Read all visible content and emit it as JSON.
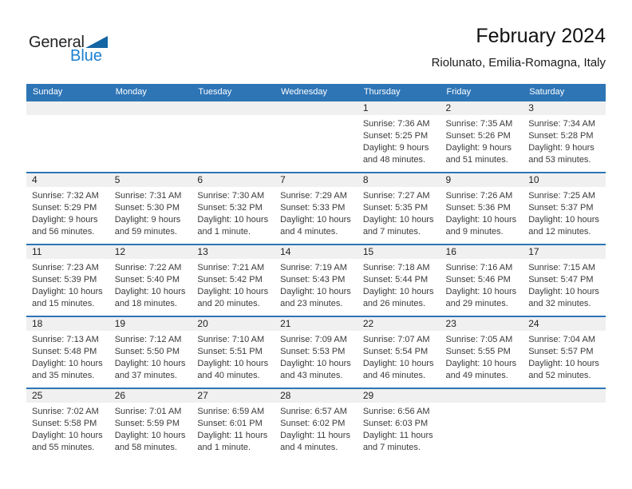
{
  "logo": {
    "part1": "General",
    "part2": "Blue"
  },
  "header": {
    "title": "February 2024",
    "subtitle": "Riolunato, Emilia-Romagna, Italy"
  },
  "colors": {
    "header_blue": "#2e75b6",
    "row_line_blue": "#2e75b6",
    "band_gray": "#f0f0f0",
    "brand_blue": "#1b7fd0",
    "triangle_blue": "#1465a4"
  },
  "calendar": {
    "weekdays": [
      "Sunday",
      "Monday",
      "Tuesday",
      "Wednesday",
      "Thursday",
      "Friday",
      "Saturday"
    ],
    "weeks": [
      {
        "days": [
          null,
          null,
          null,
          null,
          {
            "day": "1",
            "sunrise": "Sunrise: 7:36 AM",
            "sunset": "Sunset: 5:25 PM",
            "daylight": "Daylight: 9 hours and 48 minutes."
          },
          {
            "day": "2",
            "sunrise": "Sunrise: 7:35 AM",
            "sunset": "Sunset: 5:26 PM",
            "daylight": "Daylight: 9 hours and 51 minutes."
          },
          {
            "day": "3",
            "sunrise": "Sunrise: 7:34 AM",
            "sunset": "Sunset: 5:28 PM",
            "daylight": "Daylight: 9 hours and 53 minutes."
          }
        ]
      },
      {
        "days": [
          {
            "day": "4",
            "sunrise": "Sunrise: 7:32 AM",
            "sunset": "Sunset: 5:29 PM",
            "daylight": "Daylight: 9 hours and 56 minutes."
          },
          {
            "day": "5",
            "sunrise": "Sunrise: 7:31 AM",
            "sunset": "Sunset: 5:30 PM",
            "daylight": "Daylight: 9 hours and 59 minutes."
          },
          {
            "day": "6",
            "sunrise": "Sunrise: 7:30 AM",
            "sunset": "Sunset: 5:32 PM",
            "daylight": "Daylight: 10 hours and 1 minute."
          },
          {
            "day": "7",
            "sunrise": "Sunrise: 7:29 AM",
            "sunset": "Sunset: 5:33 PM",
            "daylight": "Daylight: 10 hours and 4 minutes."
          },
          {
            "day": "8",
            "sunrise": "Sunrise: 7:27 AM",
            "sunset": "Sunset: 5:35 PM",
            "daylight": "Daylight: 10 hours and 7 minutes."
          },
          {
            "day": "9",
            "sunrise": "Sunrise: 7:26 AM",
            "sunset": "Sunset: 5:36 PM",
            "daylight": "Daylight: 10 hours and 9 minutes."
          },
          {
            "day": "10",
            "sunrise": "Sunrise: 7:25 AM",
            "sunset": "Sunset: 5:37 PM",
            "daylight": "Daylight: 10 hours and 12 minutes."
          }
        ]
      },
      {
        "days": [
          {
            "day": "11",
            "sunrise": "Sunrise: 7:23 AM",
            "sunset": "Sunset: 5:39 PM",
            "daylight": "Daylight: 10 hours and 15 minutes."
          },
          {
            "day": "12",
            "sunrise": "Sunrise: 7:22 AM",
            "sunset": "Sunset: 5:40 PM",
            "daylight": "Daylight: 10 hours and 18 minutes."
          },
          {
            "day": "13",
            "sunrise": "Sunrise: 7:21 AM",
            "sunset": "Sunset: 5:42 PM",
            "daylight": "Daylight: 10 hours and 20 minutes."
          },
          {
            "day": "14",
            "sunrise": "Sunrise: 7:19 AM",
            "sunset": "Sunset: 5:43 PM",
            "daylight": "Daylight: 10 hours and 23 minutes."
          },
          {
            "day": "15",
            "sunrise": "Sunrise: 7:18 AM",
            "sunset": "Sunset: 5:44 PM",
            "daylight": "Daylight: 10 hours and 26 minutes."
          },
          {
            "day": "16",
            "sunrise": "Sunrise: 7:16 AM",
            "sunset": "Sunset: 5:46 PM",
            "daylight": "Daylight: 10 hours and 29 minutes."
          },
          {
            "day": "17",
            "sunrise": "Sunrise: 7:15 AM",
            "sunset": "Sunset: 5:47 PM",
            "daylight": "Daylight: 10 hours and 32 minutes."
          }
        ]
      },
      {
        "days": [
          {
            "day": "18",
            "sunrise": "Sunrise: 7:13 AM",
            "sunset": "Sunset: 5:48 PM",
            "daylight": "Daylight: 10 hours and 35 minutes."
          },
          {
            "day": "19",
            "sunrise": "Sunrise: 7:12 AM",
            "sunset": "Sunset: 5:50 PM",
            "daylight": "Daylight: 10 hours and 37 minutes."
          },
          {
            "day": "20",
            "sunrise": "Sunrise: 7:10 AM",
            "sunset": "Sunset: 5:51 PM",
            "daylight": "Daylight: 10 hours and 40 minutes."
          },
          {
            "day": "21",
            "sunrise": "Sunrise: 7:09 AM",
            "sunset": "Sunset: 5:53 PM",
            "daylight": "Daylight: 10 hours and 43 minutes."
          },
          {
            "day": "22",
            "sunrise": "Sunrise: 7:07 AM",
            "sunset": "Sunset: 5:54 PM",
            "daylight": "Daylight: 10 hours and 46 minutes."
          },
          {
            "day": "23",
            "sunrise": "Sunrise: 7:05 AM",
            "sunset": "Sunset: 5:55 PM",
            "daylight": "Daylight: 10 hours and 49 minutes."
          },
          {
            "day": "24",
            "sunrise": "Sunrise: 7:04 AM",
            "sunset": "Sunset: 5:57 PM",
            "daylight": "Daylight: 10 hours and 52 minutes."
          }
        ]
      },
      {
        "days": [
          {
            "day": "25",
            "sunrise": "Sunrise: 7:02 AM",
            "sunset": "Sunset: 5:58 PM",
            "daylight": "Daylight: 10 hours and 55 minutes."
          },
          {
            "day": "26",
            "sunrise": "Sunrise: 7:01 AM",
            "sunset": "Sunset: 5:59 PM",
            "daylight": "Daylight: 10 hours and 58 minutes."
          },
          {
            "day": "27",
            "sunrise": "Sunrise: 6:59 AM",
            "sunset": "Sunset: 6:01 PM",
            "daylight": "Daylight: 11 hours and 1 minute."
          },
          {
            "day": "28",
            "sunrise": "Sunrise: 6:57 AM",
            "sunset": "Sunset: 6:02 PM",
            "daylight": "Daylight: 11 hours and 4 minutes."
          },
          {
            "day": "29",
            "sunrise": "Sunrise: 6:56 AM",
            "sunset": "Sunset: 6:03 PM",
            "daylight": "Daylight: 11 hours and 7 minutes."
          },
          null,
          null
        ]
      }
    ]
  }
}
